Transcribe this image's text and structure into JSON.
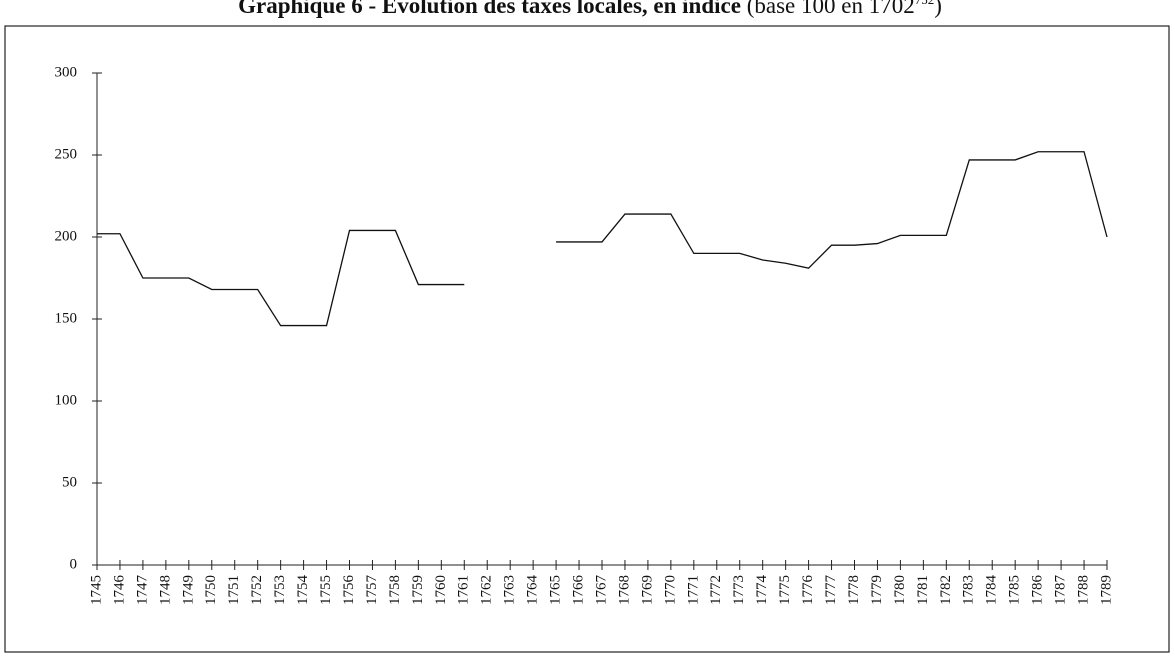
{
  "chart_data": {
    "type": "line",
    "title": "Graphique 6 - Évolution des taxes locales, en indice",
    "subtitle": "(base 100 en 1702",
    "footnote_mark": "752",
    "subtitle_end": ")",
    "categories": [
      "1745",
      "1746",
      "1747",
      "1748",
      "1749",
      "1750",
      "1751",
      "1752",
      "1753",
      "1754",
      "1755",
      "1756",
      "1757",
      "1758",
      "1759",
      "1760",
      "1761",
      "1762",
      "1763",
      "1764",
      "1765",
      "1766",
      "1767",
      "1768",
      "1769",
      "1770",
      "1771",
      "1772",
      "1773",
      "1774",
      "1775",
      "1776",
      "1777",
      "1778",
      "1779",
      "1780",
      "1781",
      "1782",
      "1783",
      "1784",
      "1785",
      "1786",
      "1787",
      "1788",
      "1789"
    ],
    "series": [
      {
        "color": "#111111",
        "values": [
          202,
          202,
          175,
          175,
          175,
          168,
          168,
          168,
          146,
          146,
          146,
          204,
          204,
          204,
          171,
          171,
          171,
          null,
          null,
          null,
          197,
          197,
          197,
          214,
          214,
          214,
          190,
          190,
          190,
          186,
          184,
          181,
          195,
          195,
          196,
          201,
          201,
          201,
          247,
          247,
          247,
          252,
          252,
          252,
          200
        ]
      }
    ],
    "ylim": [
      0,
      300
    ],
    "yticks": [
      0,
      50,
      100,
      150,
      200,
      250,
      300
    ],
    "grid": false
  }
}
